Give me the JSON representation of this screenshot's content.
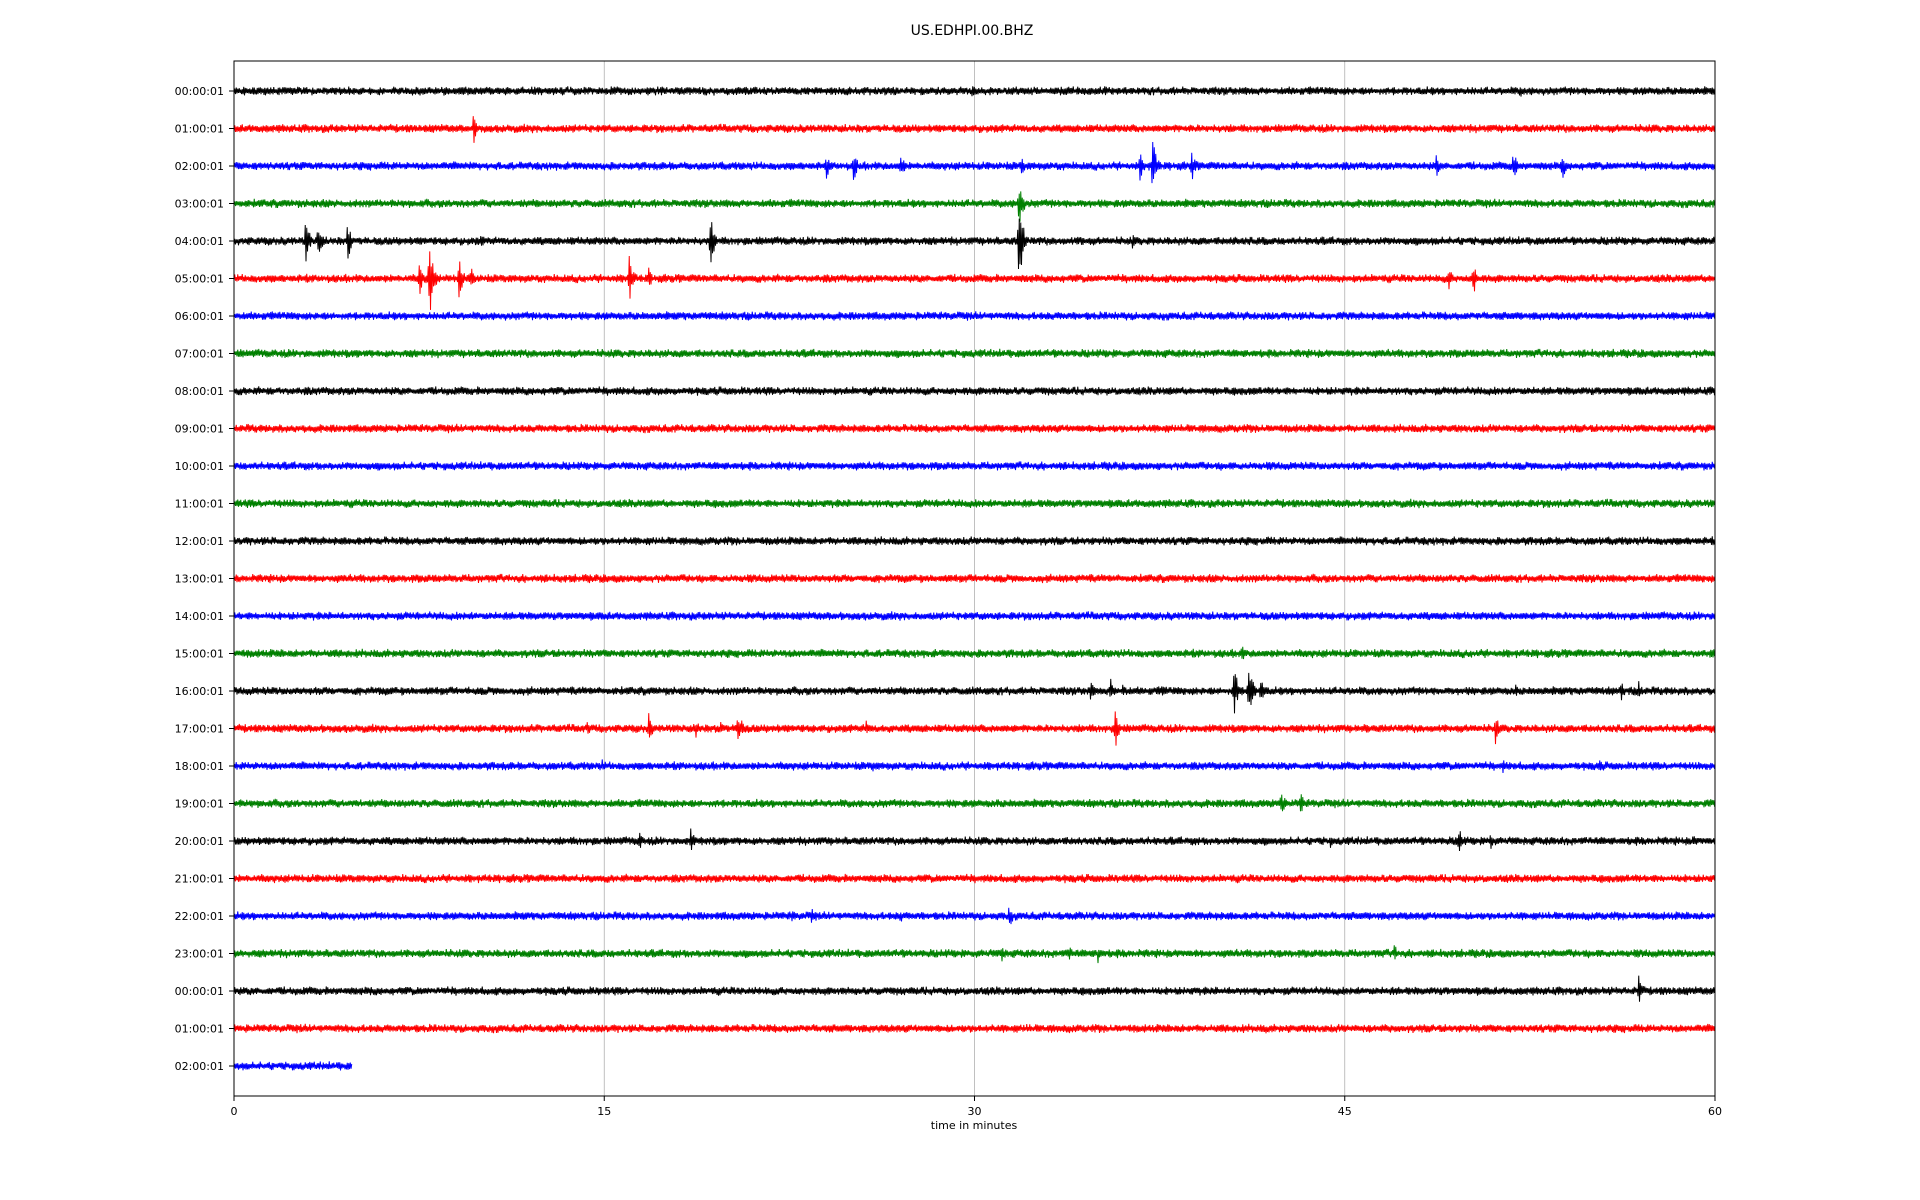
{
  "chart_data": {
    "type": "line",
    "title": "US.EDHPI.00.BHZ",
    "xlabel": "time in minutes",
    "ylabel": "",
    "xlim": [
      0,
      60
    ],
    "x_ticks": [
      0,
      15,
      30,
      45,
      60
    ],
    "grid": "vertical",
    "trace_colors": [
      "#000000",
      "#ff0000",
      "#0000ff",
      "#008000"
    ],
    "rows": [
      {
        "label": "00:00:01",
        "end_minute": 60,
        "events": [
          {
            "t": 29.9,
            "a": 0.3
          },
          {
            "t": 52.1,
            "a": 0.3
          }
        ]
      },
      {
        "label": "01:00:01",
        "end_minute": 60,
        "events": [
          {
            "t": 9.7,
            "a": 0.6
          }
        ]
      },
      {
        "label": "02:00:01",
        "end_minute": 60,
        "events": [
          {
            "t": 24.0,
            "a": 0.5
          },
          {
            "t": 25.1,
            "a": 0.6
          },
          {
            "t": 27.0,
            "a": 0.6
          },
          {
            "t": 31.9,
            "a": 0.4
          },
          {
            "t": 36.7,
            "a": 0.6
          },
          {
            "t": 37.2,
            "a": 1.2
          },
          {
            "t": 38.8,
            "a": 0.6
          },
          {
            "t": 48.7,
            "a": 0.5
          },
          {
            "t": 51.8,
            "a": 0.7
          },
          {
            "t": 53.8,
            "a": 0.6
          }
        ]
      },
      {
        "label": "03:00:01",
        "end_minute": 60,
        "events": [
          {
            "t": 31.8,
            "a": 1.0
          },
          {
            "t": 54.7,
            "a": 0.2
          }
        ]
      },
      {
        "label": "04:00:01",
        "end_minute": 60,
        "events": [
          {
            "t": 31.8,
            "a": 1.8
          },
          {
            "t": 2.9,
            "a": 0.9
          },
          {
            "t": 3.4,
            "a": 0.8
          },
          {
            "t": 4.6,
            "a": 0.8
          },
          {
            "t": 10.0,
            "a": 0.3
          },
          {
            "t": 19.3,
            "a": 1.0
          },
          {
            "t": 34.3,
            "a": 0.3
          },
          {
            "t": 36.4,
            "a": 0.3
          },
          {
            "t": 40.5,
            "a": 0.3
          }
        ]
      },
      {
        "label": "05:00:01",
        "end_minute": 60,
        "events": [
          {
            "t": 7.5,
            "a": 0.7
          },
          {
            "t": 7.9,
            "a": 1.7
          },
          {
            "t": 9.1,
            "a": 0.9
          },
          {
            "t": 9.6,
            "a": 0.5
          },
          {
            "t": 16.0,
            "a": 1.0
          },
          {
            "t": 16.8,
            "a": 0.4
          },
          {
            "t": 49.2,
            "a": 0.5
          },
          {
            "t": 50.2,
            "a": 0.7
          }
        ]
      },
      {
        "label": "06:00:01",
        "end_minute": 60,
        "events": []
      },
      {
        "label": "07:00:01",
        "end_minute": 60,
        "events": []
      },
      {
        "label": "08:00:01",
        "end_minute": 60,
        "events": []
      },
      {
        "label": "09:00:01",
        "end_minute": 60,
        "events": []
      },
      {
        "label": "10:00:01",
        "end_minute": 60,
        "events": []
      },
      {
        "label": "11:00:01",
        "end_minute": 60,
        "events": []
      },
      {
        "label": "12:00:01",
        "end_minute": 60,
        "events": []
      },
      {
        "label": "13:00:01",
        "end_minute": 60,
        "events": []
      },
      {
        "label": "14:00:01",
        "end_minute": 60,
        "events": []
      },
      {
        "label": "15:00:01",
        "end_minute": 60,
        "events": [
          {
            "t": 40.8,
            "a": 0.4
          }
        ]
      },
      {
        "label": "16:00:01",
        "end_minute": 60,
        "events": [
          {
            "t": 34.7,
            "a": 0.4
          },
          {
            "t": 35.5,
            "a": 0.5
          },
          {
            "t": 36.0,
            "a": 0.4
          },
          {
            "t": 37.6,
            "a": 0.3
          },
          {
            "t": 40.5,
            "a": 1.1
          },
          {
            "t": 41.1,
            "a": 1.3
          },
          {
            "t": 41.6,
            "a": 0.7
          },
          {
            "t": 45.3,
            "a": 0.2
          },
          {
            "t": 51.9,
            "a": 0.3
          },
          {
            "t": 56.2,
            "a": 0.4
          },
          {
            "t": 56.9,
            "a": 0.4
          }
        ]
      },
      {
        "label": "17:00:01",
        "end_minute": 60,
        "events": [
          {
            "t": 14.3,
            "a": 0.3
          },
          {
            "t": 16.8,
            "a": 0.6
          },
          {
            "t": 18.7,
            "a": 0.4
          },
          {
            "t": 19.7,
            "a": 0.4
          },
          {
            "t": 20.4,
            "a": 0.9
          },
          {
            "t": 25.6,
            "a": 0.4
          },
          {
            "t": 35.7,
            "a": 0.8
          },
          {
            "t": 45.9,
            "a": 0.3
          },
          {
            "t": 51.1,
            "a": 0.6
          }
        ]
      },
      {
        "label": "18:00:01",
        "end_minute": 60,
        "events": [
          {
            "t": 14.9,
            "a": 0.3
          },
          {
            "t": 25.9,
            "a": 0.3
          },
          {
            "t": 51.4,
            "a": 0.3
          },
          {
            "t": 55.3,
            "a": 0.3
          }
        ]
      },
      {
        "label": "19:00:01",
        "end_minute": 60,
        "events": [
          {
            "t": 42.4,
            "a": 0.6
          },
          {
            "t": 43.2,
            "a": 0.5
          },
          {
            "t": 38.4,
            "a": 0.2
          }
        ]
      },
      {
        "label": "20:00:01",
        "end_minute": 60,
        "events": [
          {
            "t": 16.4,
            "a": 0.4
          },
          {
            "t": 18.5,
            "a": 0.5
          },
          {
            "t": 44.4,
            "a": 0.3
          },
          {
            "t": 49.6,
            "a": 0.6
          },
          {
            "t": 50.9,
            "a": 0.4
          },
          {
            "t": 59.1,
            "a": 0.3
          }
        ]
      },
      {
        "label": "21:00:01",
        "end_minute": 60,
        "events": []
      },
      {
        "label": "22:00:01",
        "end_minute": 60,
        "events": [
          {
            "t": 22.6,
            "a": 0.3
          },
          {
            "t": 23.4,
            "a": 0.3
          },
          {
            "t": 27.0,
            "a": 0.3
          },
          {
            "t": 31.4,
            "a": 0.5
          },
          {
            "t": 39.8,
            "a": 0.2
          }
        ]
      },
      {
        "label": "23:00:01",
        "end_minute": 60,
        "events": [
          {
            "t": 31.1,
            "a": 0.4
          },
          {
            "t": 33.8,
            "a": 0.4
          },
          {
            "t": 35.0,
            "a": 0.4
          },
          {
            "t": 47.0,
            "a": 0.4
          }
        ]
      },
      {
        "label": "00:00:01",
        "end_minute": 60,
        "events": [
          {
            "t": 5.5,
            "a": 0.2
          },
          {
            "t": 14.8,
            "a": 0.2
          },
          {
            "t": 56.9,
            "a": 0.7
          }
        ]
      },
      {
        "label": "01:00:01",
        "end_minute": 60,
        "events": [
          {
            "t": 2.7,
            "a": 0.2
          },
          {
            "t": 32.1,
            "a": 0.2
          },
          {
            "t": 41.8,
            "a": 0.2
          }
        ]
      },
      {
        "label": "02:00:01",
        "end_minute": 4.8,
        "events": []
      }
    ]
  }
}
